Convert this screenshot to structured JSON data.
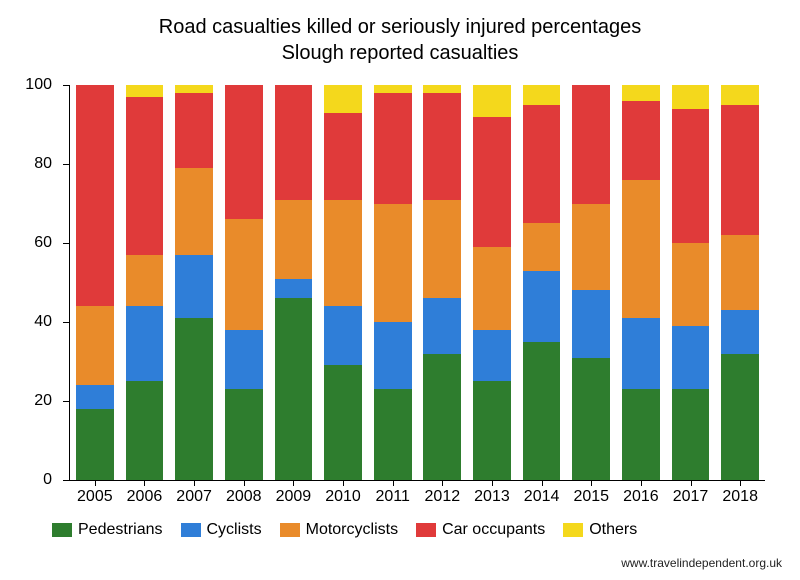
{
  "chart": {
    "type": "stacked-bar",
    "title_line1": "Road casualties killed or seriously injured percentages",
    "title_line2": "Slough reported casualties",
    "title_fontsize": 20,
    "label_fontsize": 16,
    "background_color": "#ffffff",
    "axis_color": "#000000",
    "bar_width": 0.76,
    "ylim": [
      0,
      100
    ],
    "ytick_step": 20,
    "yticks": [
      0,
      20,
      40,
      60,
      80,
      100
    ],
    "categories": [
      "2005",
      "2006",
      "2007",
      "2008",
      "2009",
      "2010",
      "2011",
      "2012",
      "2013",
      "2014",
      "2015",
      "2016",
      "2017",
      "2018"
    ],
    "series": [
      {
        "name": "Pedestrians",
        "color": "#2e7d2e"
      },
      {
        "name": "Cyclists",
        "color": "#2f7ed8"
      },
      {
        "name": "Motorcyclists",
        "color": "#e98b2a"
      },
      {
        "name": "Car occupants",
        "color": "#e03a3a"
      },
      {
        "name": "Others",
        "color": "#f4d81c"
      }
    ],
    "data": [
      [
        18,
        6,
        20,
        56,
        0
      ],
      [
        25,
        19,
        13,
        40,
        3
      ],
      [
        41,
        16,
        22,
        19,
        2
      ],
      [
        23,
        15,
        28,
        34,
        0
      ],
      [
        46,
        5,
        20,
        29,
        0
      ],
      [
        29,
        15,
        27,
        22,
        7
      ],
      [
        23,
        17,
        30,
        28,
        2
      ],
      [
        32,
        14,
        25,
        27,
        2
      ],
      [
        25,
        13,
        21,
        33,
        8
      ],
      [
        35,
        18,
        12,
        30,
        5
      ],
      [
        31,
        17,
        22,
        30,
        0
      ],
      [
        23,
        18,
        35,
        20,
        4
      ],
      [
        23,
        16,
        21,
        34,
        6
      ],
      [
        32,
        11,
        19,
        33,
        5
      ]
    ],
    "source_url": "www.travelindependent.org.uk"
  }
}
